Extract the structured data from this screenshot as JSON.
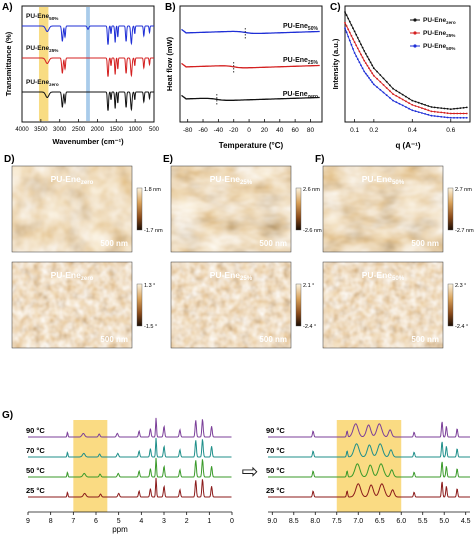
{
  "panels": {
    "A": {
      "letter": "A)",
      "xlabel": "Wavenumber (cm⁻¹)",
      "ylabel": "Transmittance (%)",
      "xticks": [
        "4000",
        "3500",
        "3000",
        "2500",
        "2000",
        "1500",
        "1000",
        "500"
      ],
      "series": [
        {
          "label": "PU-Ene",
          "sub": "50%",
          "color": "#1f2fd6"
        },
        {
          "label": "PU-Ene",
          "sub": "25%",
          "color": "#d42020"
        },
        {
          "label": "PU-Ene",
          "sub": "zero",
          "color": "#111111"
        }
      ],
      "highlights": [
        {
          "range": [
            3550,
            3300
          ],
          "color": "#f4c430"
        },
        {
          "range": [
            2300,
            2200
          ],
          "color": "#6fa8dc"
        }
      ]
    },
    "B": {
      "letter": "B)",
      "xlabel": "Temperature (°C)",
      "ylabel": "Heat flow (mW)",
      "xticks": [
        "-80",
        "-60",
        "-40",
        "-20",
        "0",
        "20",
        "40",
        "60",
        "80"
      ],
      "xlim": [
        -90,
        95
      ],
      "series": [
        {
          "label": "PU-Ene",
          "sub": "50%",
          "color": "#1f2fd6",
          "tg": -5
        },
        {
          "label": "PU-Ene",
          "sub": "25%",
          "color": "#d42020",
          "tg": -20
        },
        {
          "label": "PU-Ene",
          "sub": "zero",
          "color": "#111111",
          "tg": -42
        }
      ]
    },
    "C": {
      "letter": "C)",
      "xlabel": "q (A⁻¹)",
      "ylabel": "Intensity (a.u.)",
      "xticks": [
        "0.1",
        "0.2",
        "0.4",
        "0.6"
      ],
      "xlim": [
        0.05,
        0.7
      ],
      "legend": [
        {
          "label": "PU-Ene",
          "sub": "zero",
          "color": "#111111"
        },
        {
          "label": "PU-Ene",
          "sub": "25%",
          "color": "#d42020"
        },
        {
          "label": "PU-Ene",
          "sub": "50%",
          "color": "#1f2fd6"
        }
      ]
    },
    "afm": [
      {
        "letter": "D)",
        "title": "PU-Ene",
        "sub": "zero",
        "scalebar": "500 nm",
        "cb_top": "1.8 nm",
        "cb_bot": "-1.7 nm",
        "kind": "height"
      },
      {
        "letter": "E)",
        "title": "PU-Ene",
        "sub": "25%",
        "scalebar": "500 nm",
        "cb_top": "2.6 nm",
        "cb_bot": "-2.6 nm",
        "kind": "height"
      },
      {
        "letter": "F)",
        "title": "PU-Ene",
        "sub": "50%",
        "scalebar": "500 nm",
        "cb_top": "2.7 nm",
        "cb_bot": "-2.7 nm",
        "kind": "height"
      },
      {
        "letter": "",
        "title": "PU-Ene",
        "sub": "zero",
        "scalebar": "500 nm",
        "cb_top": "1.3 °",
        "cb_bot": "-1.5 °",
        "kind": "phase"
      },
      {
        "letter": "",
        "title": "PU-Ene",
        "sub": "25%",
        "scalebar": "500 nm",
        "cb_top": "2.1 °",
        "cb_bot": "-2.4 °",
        "kind": "phase"
      },
      {
        "letter": "",
        "title": "PU-Ene",
        "sub": "50%",
        "scalebar": "500 nm",
        "cb_top": "2.3 °",
        "cb_bot": "-2.4 °",
        "kind": "phase"
      }
    ],
    "G": {
      "letter": "G)",
      "xlabel": "ppm",
      "xticks_left": [
        "9",
        "8",
        "7",
        "6",
        "5",
        "4",
        "3",
        "2",
        "1",
        "0"
      ],
      "xticks_right": [
        "9.0",
        "8.5",
        "8.0",
        "7.5",
        "7.0",
        "6.5",
        "6.0",
        "5.5",
        "5.0",
        "4.5"
      ],
      "temperatures": [
        "90 °C",
        "70 °C",
        "50 °C",
        "25 °C"
      ],
      "colors": [
        "#7b3f99",
        "#1f8f8a",
        "#3a9a2a",
        "#8b1a1a"
      ],
      "highlight_left": [
        7.0,
        5.5
      ],
      "highlight_right": [
        7.5,
        6.0
      ],
      "arrow": "⇨"
    }
  },
  "chart_data": [
    {
      "type": "line",
      "title": "",
      "xlabel": "Wavenumber (cm⁻¹)",
      "ylabel": "Transmittance (%)",
      "xlim": [
        4000,
        500
      ],
      "series": [
        {
          "name": "PU-Ene50%",
          "peaks": [
            3330,
            2930,
            2860,
            1720,
            1530,
            1460,
            1240,
            1100,
            770
          ]
        },
        {
          "name": "PU-Ene25%",
          "peaks": [
            3330,
            2930,
            2860,
            1720,
            1530,
            1460,
            1240,
            1100,
            770
          ]
        },
        {
          "name": "PU-Enezero",
          "peaks": [
            3330,
            2930,
            2860,
            1720,
            1530,
            1460,
            1240,
            1100,
            770
          ]
        }
      ]
    },
    {
      "type": "line",
      "title": "",
      "xlabel": "Temperature (°C)",
      "ylabel": "Heat flow (mW)",
      "xlim": [
        -90,
        95
      ],
      "series": [
        {
          "name": "PU-Ene50%",
          "tg": -5
        },
        {
          "name": "PU-Ene25%",
          "tg": -20
        },
        {
          "name": "PU-Enezero",
          "tg": -42
        }
      ]
    },
    {
      "type": "scatter",
      "title": "",
      "xlabel": "q (A⁻¹)",
      "ylabel": "Intensity (a.u.)",
      "xlim": [
        0.05,
        0.7
      ],
      "series": [
        {
          "name": "PU-Enezero",
          "x": [
            0.05,
            0.1,
            0.15,
            0.2,
            0.3,
            0.4,
            0.5,
            0.6,
            0.7
          ],
          "y": [
            1.0,
            0.82,
            0.64,
            0.48,
            0.29,
            0.18,
            0.12,
            0.1,
            0.12
          ]
        },
        {
          "name": "PU-Ene25%",
          "x": [
            0.05,
            0.1,
            0.15,
            0.2,
            0.3,
            0.4,
            0.5,
            0.6,
            0.7
          ],
          "y": [
            0.9,
            0.72,
            0.55,
            0.41,
            0.24,
            0.14,
            0.08,
            0.06,
            0.06
          ]
        },
        {
          "name": "PU-Ene50%",
          "x": [
            0.05,
            0.1,
            0.15,
            0.2,
            0.3,
            0.4,
            0.5,
            0.6,
            0.7
          ],
          "y": [
            0.85,
            0.62,
            0.45,
            0.33,
            0.18,
            0.09,
            0.04,
            0.02,
            0.02
          ]
        }
      ]
    }
  ]
}
